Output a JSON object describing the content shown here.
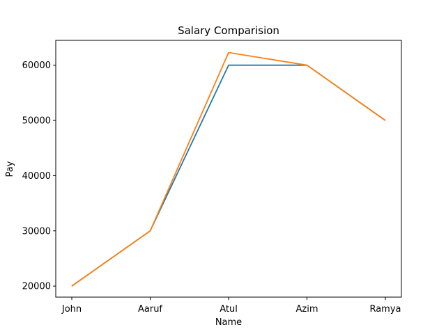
{
  "chart_data": {
    "type": "line",
    "title": "Salary Comparision",
    "xlabel": "Name",
    "ylabel": "Pay",
    "categories": [
      "John",
      "Aaruf",
      "Atul",
      "Azim",
      "Ramya"
    ],
    "series": [
      {
        "color": "#1f77b4",
        "values": [
          20000,
          30000,
          60000,
          60000,
          50000
        ]
      },
      {
        "color": "#ff7f0e",
        "values": [
          20000,
          30000,
          62300,
          60000,
          50000
        ]
      }
    ],
    "yticks": [
      20000,
      30000,
      40000,
      50000,
      60000
    ],
    "ylim": [
      18000,
      64500
    ],
    "grid": false,
    "legend": "none"
  }
}
